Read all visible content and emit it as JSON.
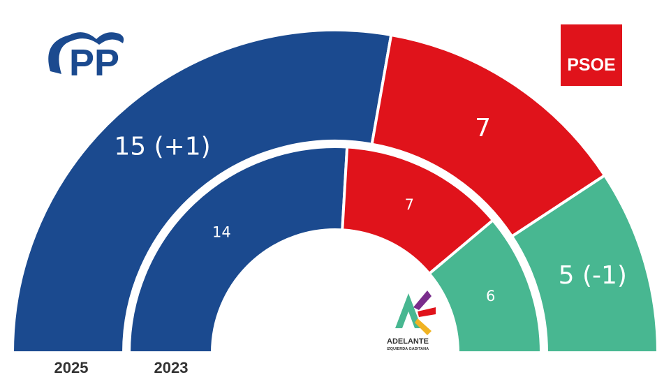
{
  "chart_data": {
    "type": "semicircle-parliament",
    "rings": [
      {
        "year": "2025",
        "segments": [
          {
            "party": "PP",
            "seats": 15,
            "label": "15 (+1)",
            "color": "#1b4a8f"
          },
          {
            "party": "PSOE",
            "seats": 7,
            "label": "7",
            "color": "#e0131b"
          },
          {
            "party": "Adelante Izquierda Gaditana",
            "seats": 5,
            "label": "5 (-1)",
            "color": "#48b791"
          }
        ]
      },
      {
        "year": "2023",
        "segments": [
          {
            "party": "PP",
            "seats": 14,
            "label": "14",
            "color": "#1b4a8f"
          },
          {
            "party": "PSOE",
            "seats": 7,
            "label": "7",
            "color": "#e0131b"
          },
          {
            "party": "Adelante Izquierda Gaditana",
            "seats": 6,
            "label": "6",
            "color": "#48b791"
          }
        ]
      }
    ]
  },
  "logos": {
    "pp": {
      "text": "PP",
      "color": "#1b4a8f"
    },
    "psoe": {
      "text": "PSOE",
      "color": "#e0131b"
    },
    "adelante": {
      "text": "ADELANTE",
      "subtext": "IZQUIERDA GADITANA"
    }
  }
}
